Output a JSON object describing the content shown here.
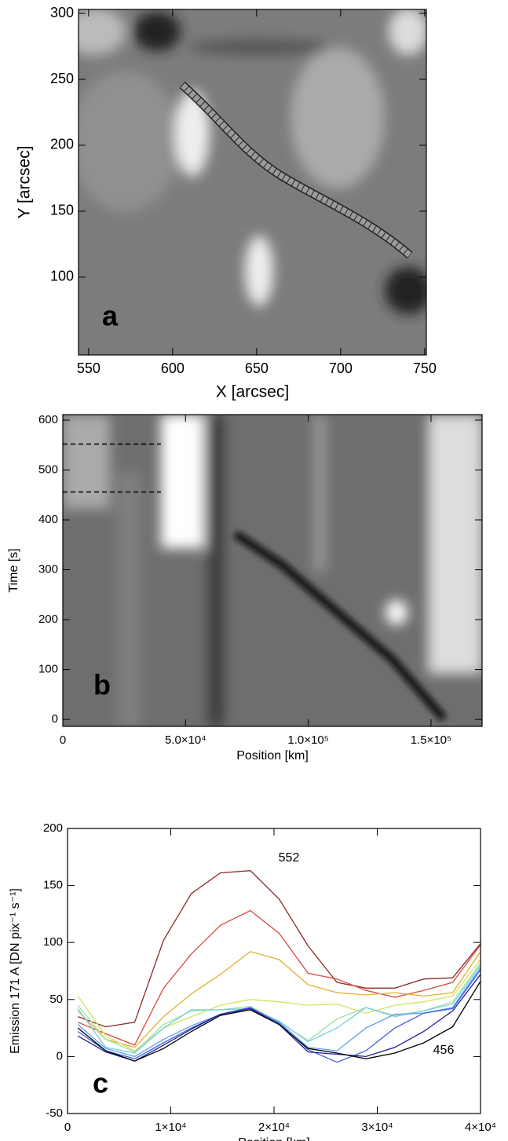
{
  "chart_data": [
    {
      "type": "image",
      "panel_label": "a",
      "xlabel": "X [arcsec]",
      "ylabel": "Y [arcsec]",
      "xlim": [
        544,
        751
      ],
      "xticks": [
        550,
        600,
        650,
        700,
        750
      ],
      "ylim": [
        41,
        303
      ],
      "yticks": [
        100,
        150,
        200,
        250,
        300
      ]
    },
    {
      "type": "image",
      "panel_label": "b",
      "xlabel": "Position [km]",
      "ylabel": "Time [s]",
      "xlim": [
        0,
        170800
      ],
      "xticks": [
        0,
        {
          "value": 50000,
          "label": "5.0×10⁴"
        },
        {
          "value": 100000,
          "label": "1.0×10⁵"
        },
        {
          "value": 150000,
          "label": "1.5×10⁵"
        }
      ],
      "ylim": [
        -14,
        611
      ],
      "yticks": [
        0,
        100,
        200,
        300,
        400,
        500,
        600
      ],
      "hlines": [
        552,
        456
      ]
    },
    {
      "type": "line",
      "panel_label": "c",
      "xlabel": "Position [km]",
      "ylabel": "Emission 171 A [DN pix⁻¹ s⁻¹]",
      "xlim": [
        0,
        40000
      ],
      "xticks": [
        0,
        {
          "value": 10000,
          "label": "1×10⁴"
        },
        {
          "value": 20000,
          "label": "2×10⁴"
        },
        {
          "value": 30000,
          "label": "3×10⁴"
        },
        {
          "value": 40000,
          "label": "4×10⁴"
        }
      ],
      "ylim": [
        -50,
        200
      ],
      "yticks": [
        -50,
        0,
        50,
        100,
        150,
        200
      ],
      "annotations": [
        "552",
        "456"
      ],
      "x": [
        1000,
        3700,
        6500,
        9300,
        12000,
        14800,
        17700,
        20500,
        23300,
        26100,
        28900,
        31700,
        34500,
        37300,
        40000
      ],
      "series": [
        {
          "color": "#8b2a2a",
          "values": [
            35,
            26,
            30,
            102,
            143,
            161,
            163,
            138,
            97,
            65,
            60,
            60,
            68,
            69,
            99
          ]
        },
        {
          "color": "#d9493e",
          "values": [
            30,
            20,
            10,
            60,
            90,
            115,
            128,
            108,
            73,
            68,
            58,
            52,
            58,
            65,
            98
          ]
        },
        {
          "color": "#e0b030",
          "values": [
            40,
            15,
            8,
            35,
            55,
            72,
            92,
            85,
            63,
            56,
            54,
            56,
            53,
            56,
            92
          ]
        },
        {
          "color": "#d8e060",
          "values": [
            53,
            18,
            5,
            25,
            35,
            45,
            50,
            48,
            45,
            46,
            38,
            45,
            48,
            53,
            85
          ]
        },
        {
          "color": "#a0e0a0",
          "values": [
            45,
            15,
            4,
            28,
            40,
            41,
            44,
            30,
            14,
            33,
            43,
            36,
            40,
            48,
            82
          ]
        },
        {
          "color": "#70d0e0",
          "values": [
            42,
            8,
            3,
            25,
            41,
            41,
            42,
            31,
            13,
            25,
            43,
            35,
            40,
            46,
            80
          ]
        },
        {
          "color": "#60a0f0",
          "values": [
            28,
            7,
            0,
            15,
            27,
            37,
            43,
            30,
            8,
            5,
            25,
            37,
            38,
            43,
            78
          ]
        },
        {
          "color": "#4060e0",
          "values": [
            22,
            5,
            -2,
            12,
            25,
            37,
            43,
            29,
            6,
            -5,
            5,
            25,
            38,
            42,
            76
          ]
        },
        {
          "color": "#202090",
          "values": [
            18,
            4,
            -4,
            10,
            24,
            37,
            42,
            28,
            4,
            2,
            0,
            8,
            22,
            40,
            72
          ]
        },
        {
          "color": "#000000",
          "values": [
            25,
            5,
            -4,
            7,
            22,
            36,
            41,
            28,
            7,
            3,
            -2,
            3,
            12,
            26,
            66
          ]
        }
      ]
    }
  ]
}
